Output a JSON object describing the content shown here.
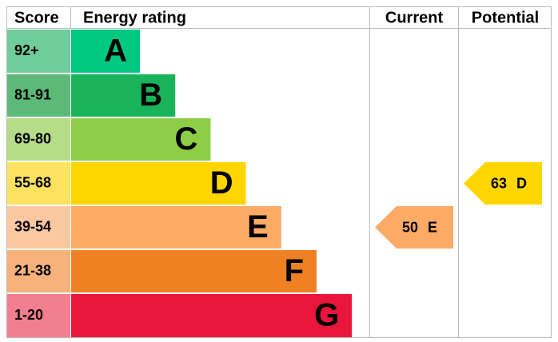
{
  "header": {
    "score": "Score",
    "rating": "Energy rating",
    "current": "Current",
    "potential": "Potential"
  },
  "bands": [
    {
      "score": "92+",
      "letter": "A",
      "color": "#00c781",
      "score_color": "#6fcc9b"
    },
    {
      "score": "81-91",
      "letter": "B",
      "color": "#19b459",
      "score_color": "#5cba78"
    },
    {
      "score": "69-80",
      "letter": "C",
      "color": "#8dce46",
      "score_color": "#b5dc88"
    },
    {
      "score": "55-68",
      "letter": "D",
      "color": "#ffd500",
      "score_color": "#fde25f"
    },
    {
      "score": "39-54",
      "letter": "E",
      "color": "#fcaa65",
      "score_color": "#fcc8a2"
    },
    {
      "score": "21-38",
      "letter": "F",
      "color": "#ef8023",
      "score_color": "#f6b27a"
    },
    {
      "score": "1-20",
      "letter": "G",
      "color": "#e9153b",
      "score_color": "#f27f8f"
    }
  ],
  "current": {
    "value": 50,
    "letter": "E"
  },
  "potential": {
    "value": 63,
    "letter": "D"
  }
}
